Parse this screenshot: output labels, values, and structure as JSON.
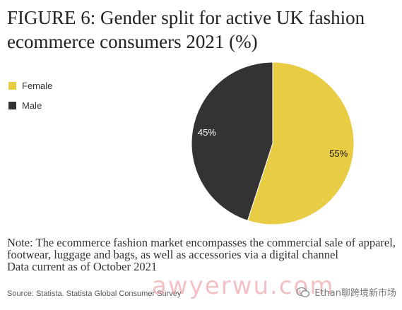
{
  "title": "FIGURE 6: Gender split for active UK fashion ecommerce consumers 2021 (%)",
  "legend": [
    {
      "label": "Female",
      "color": "#e8cc44"
    },
    {
      "label": "Male",
      "color": "#333333"
    }
  ],
  "chart_data": {
    "type": "pie",
    "title": "FIGURE 6: Gender split for active UK fashion ecommerce consumers 2021 (%)",
    "labels": [
      "Female",
      "Male"
    ],
    "values": [
      55,
      45
    ],
    "value_labels": [
      "55%",
      "45%"
    ],
    "colors": [
      "#e8cc44",
      "#333333"
    ],
    "start_angle_deg": 0,
    "direction": "clockwise",
    "legend_position": "left"
  },
  "note": {
    "text": "Note: The ecommerce fashion market encompasses the commercial sale of apparel, footwear, luggage and bags, as well as accessories via a digital channel",
    "data_current": "Data current as of October 2021"
  },
  "source": "Source: Statista. Statista Global Consumer Survey",
  "watermark": "awyerwu.com",
  "wechat_label": "Ethan聊跨境新市场",
  "icons": {
    "wechat": "wechat-icon"
  }
}
